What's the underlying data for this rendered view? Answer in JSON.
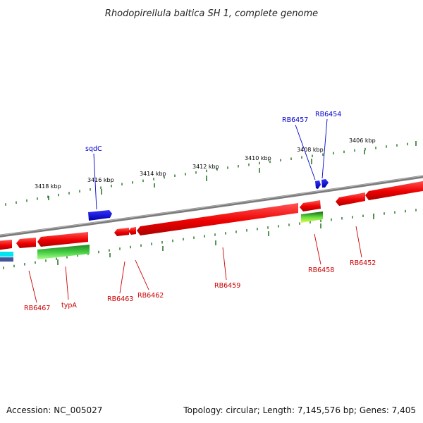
{
  "title": "Rhodopirellula baltica SH 1, complete genome",
  "footer": {
    "accession": "Accession: NC_005027",
    "summary": "Topology: circular; Length: 7,145,576 bp; Genes: 7,405"
  },
  "colors": {
    "backbone": "#7a7a7a",
    "forward_gene": "#ee0000",
    "forward_gene_shadow": "#ff7777",
    "reverse_gene": "#44cc44",
    "misc_feature_blue": "#0000ee",
    "label_forward": "#cc0000",
    "label_reverse": "#0000cc",
    "ticks": "#2a7a2a"
  },
  "ticks": [
    {
      "label": "3418 kbp"
    },
    {
      "label": "3416 kbp"
    },
    {
      "label": "3414 kbp"
    },
    {
      "label": "3412 kbp"
    },
    {
      "label": "3410 kbp"
    },
    {
      "label": "3408 kbp"
    },
    {
      "label": "3406 kbp"
    }
  ],
  "gene_labels": {
    "above": [
      "sqdC",
      "RB6457",
      "RB6454"
    ],
    "below": [
      "RB6467",
      "typA",
      "RB6463",
      "RB6462",
      "RB6459",
      "RB6458",
      "RB6452"
    ]
  }
}
